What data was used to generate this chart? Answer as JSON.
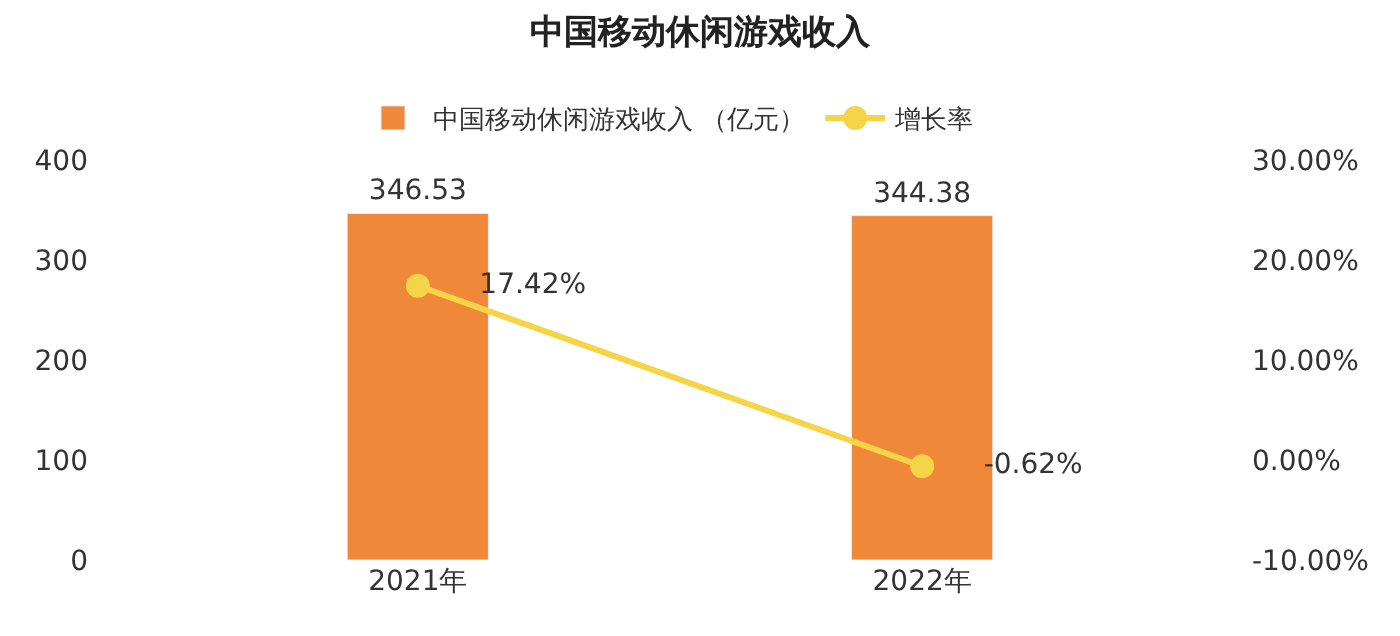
{
  "chart_data": {
    "type": "bar",
    "title": "中国移动休闲游戏收入",
    "categories": [
      "2021年",
      "2022年"
    ],
    "series": [
      {
        "name": "中国移动休闲游戏收入 （亿元）",
        "color": "#f0883a",
        "values": [
          346.53,
          344.38
        ],
        "value_labels": [
          "346.53",
          "344.38"
        ]
      },
      {
        "name": "增长率",
        "type": "line",
        "axis": "y2",
        "color": "#f5d547",
        "values": [
          17.42,
          -0.62
        ],
        "value_labels": [
          "17.42%",
          "-0.62%"
        ]
      }
    ],
    "ylim": [
      0,
      400
    ],
    "yticks": [
      0,
      100,
      200,
      300,
      400
    ],
    "y2lim": [
      -10,
      30
    ],
    "y2ticks": [
      {
        "value": -10,
        "label": "-10.00%"
      },
      {
        "value": 0,
        "label": "0.00%"
      },
      {
        "value": 10,
        "label": "10.00%"
      },
      {
        "value": 20,
        "label": "20.00%"
      },
      {
        "value": 30,
        "label": "30.00%"
      }
    ],
    "legend": "top",
    "marker": "circle"
  }
}
